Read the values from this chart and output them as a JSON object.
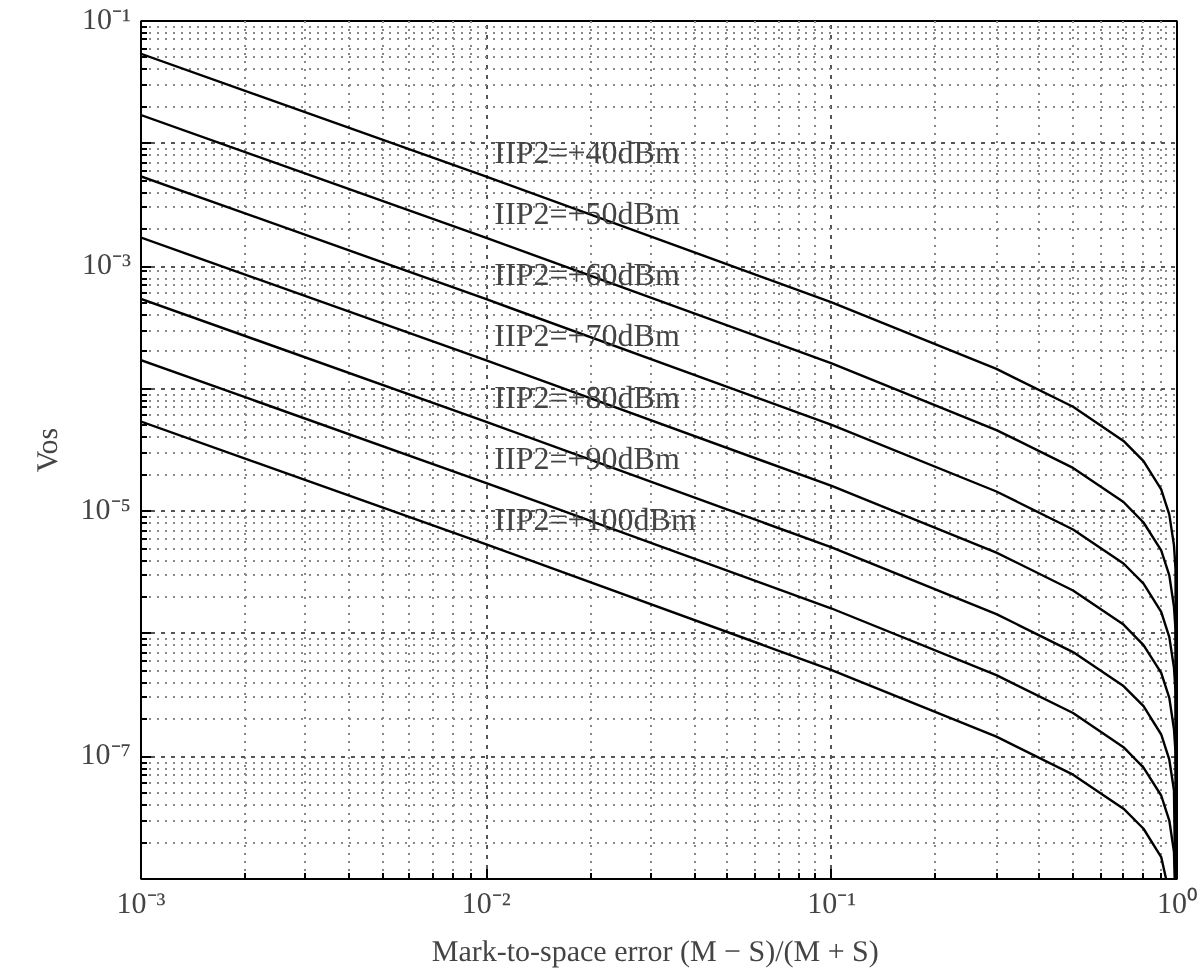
{
  "chart_data": {
    "type": "line",
    "xlabel": "Mark-to-space error  (M − S)/(M + S)",
    "ylabel": "Vos",
    "log": "xy",
    "grid": true,
    "legend": false,
    "marker": "none",
    "line_style": "solid",
    "xlim": [
      0.001,
      1
    ],
    "ylim": [
      1e-08,
      0.1
    ],
    "xticks": [
      {
        "value": 0.001,
        "label": "10⁻³"
      },
      {
        "value": 0.01,
        "label": "10⁻²"
      },
      {
        "value": 0.1,
        "label": "10⁻¹"
      },
      {
        "value": 1,
        "label": "10⁰"
      }
    ],
    "yticks": [
      {
        "value": 1e-08,
        "label": null
      },
      {
        "value": 1e-07,
        "label": "10⁻⁷"
      },
      {
        "value": 1e-06,
        "label": null
      },
      {
        "value": 1e-05,
        "label": "10⁻⁵"
      },
      {
        "value": 0.0001,
        "label": null
      },
      {
        "value": 0.001,
        "label": "10⁻³"
      },
      {
        "value": 0.01,
        "label": null
      },
      {
        "value": 0.1,
        "label": "10⁻¹"
      }
    ],
    "series": [
      {
        "name": "IIP2=+40dBm",
        "color": "#000000",
        "x": [
          0.001,
          0.01,
          0.1,
          0.3,
          0.5,
          0.7,
          0.8,
          0.9,
          0.95,
          0.98,
          0.99,
          0.999
        ],
        "values": [
          0.054,
          0.00537,
          0.000507,
          0.000145,
          7.13e-05,
          3.75e-05,
          2.57e-05,
          1.51e-05,
          9.4e-06,
          5.3e-06,
          3.4e-06,
          1e-08
        ]
      },
      {
        "name": "IIP2=+50dBm",
        "color": "#000000",
        "x": [
          0.001,
          0.01,
          0.1,
          0.3,
          0.5,
          0.7,
          0.8,
          0.9,
          0.95,
          0.98,
          0.99,
          0.997
        ],
        "values": [
          0.0171,
          0.0017,
          0.000161,
          4.6e-05,
          2.26e-05,
          1.19e-05,
          8.1e-06,
          4.8e-06,
          3e-06,
          1.67e-06,
          1.09e-06,
          1e-08
        ]
      },
      {
        "name": "IIP2=+60dBm",
        "color": "#000000",
        "x": [
          0.001,
          0.01,
          0.1,
          0.3,
          0.5,
          0.7,
          0.8,
          0.9,
          0.95,
          0.98,
          0.99,
          0.996
        ],
        "values": [
          0.0054,
          0.000537,
          5.07e-05,
          1.45e-05,
          7.1e-06,
          3.75e-06,
          2.57e-06,
          1.51e-06,
          9.4e-07,
          5.3e-07,
          3.4e-07,
          1e-08
        ]
      },
      {
        "name": "IIP2=+70dBm",
        "color": "#000000",
        "x": [
          0.001,
          0.01,
          0.1,
          0.3,
          0.5,
          0.7,
          0.8,
          0.9,
          0.95,
          0.98,
          0.99,
          0.995
        ],
        "values": [
          0.00171,
          0.00017,
          1.61e-05,
          4.6e-06,
          2.26e-06,
          1.19e-06,
          8.1e-07,
          4.8e-07,
          3e-07,
          1.67e-07,
          1.09e-07,
          1e-08
        ]
      },
      {
        "name": "IIP2=+80dBm",
        "color": "#000000",
        "x": [
          0.001,
          0.01,
          0.1,
          0.3,
          0.5,
          0.7,
          0.8,
          0.9,
          0.95,
          0.98,
          0.988
        ],
        "values": [
          0.00054,
          5.37e-05,
          5.07e-06,
          1.45e-06,
          7.1e-07,
          3.75e-07,
          2.57e-07,
          1.51e-07,
          9.4e-08,
          5.3e-08,
          1e-08
        ]
      },
      {
        "name": "IIP2=+90dBm",
        "color": "#000000",
        "x": [
          0.001,
          0.01,
          0.1,
          0.3,
          0.5,
          0.7,
          0.8,
          0.9,
          0.95,
          0.98,
          0.985
        ],
        "values": [
          0.000171,
          1.7e-05,
          1.61e-06,
          4.6e-07,
          2.26e-07,
          1.19e-07,
          8.1e-08,
          4.8e-08,
          3e-08,
          1.67e-08,
          1e-08
        ]
      },
      {
        "name": "IIP2=+100dBm",
        "color": "#000000",
        "x": [
          0.001,
          0.01,
          0.1,
          0.3,
          0.5,
          0.7,
          0.8,
          0.9,
          0.93
        ],
        "values": [
          5.4e-05,
          5.37e-06,
          5.07e-07,
          1.45e-07,
          7.1e-08,
          3.75e-08,
          2.57e-08,
          1.51e-08,
          1e-08
        ]
      }
    ]
  }
}
